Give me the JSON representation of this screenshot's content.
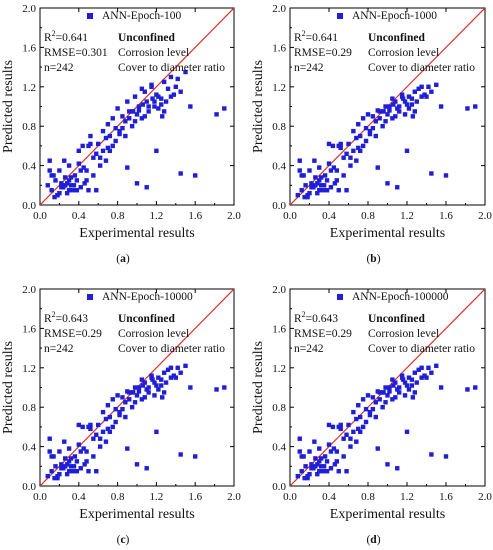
{
  "chart_data": [
    {
      "type": "scatter",
      "panel": "(a)",
      "legend": "ANN-Epoch-100",
      "stats": {
        "r2_label": "R",
        "r2_exp": "2",
        "r2_value": "=0.641",
        "rmse": "RMSE=0.301",
        "n": "n=242"
      },
      "notes": [
        "Unconfined",
        "Corrosion level",
        "Cover to diameter ratio"
      ],
      "xlabel": "Experimental results",
      "ylabel": "Predicted results",
      "xlim": [
        0,
        2.0
      ],
      "ylim": [
        0,
        2.0
      ],
      "xticks": [
        "0.0",
        "0.4",
        "0.8",
        "1.2",
        "1.6",
        "2.0"
      ],
      "yticks": [
        "0.0",
        "0.4",
        "0.8",
        "1.2",
        "1.6",
        "2.0"
      ],
      "reference_line": "y = x",
      "marker_color": "#1f1fd6",
      "line_color": "#e0302a",
      "x": [
        0.08,
        0.1,
        0.12,
        0.14,
        0.16,
        0.18,
        0.2,
        0.22,
        0.24,
        0.26,
        0.28,
        0.3,
        0.32,
        0.34,
        0.36,
        0.38,
        0.4,
        0.42,
        0.44,
        0.46,
        0.48,
        0.5,
        0.52,
        0.55,
        0.58,
        0.6,
        0.62,
        0.65,
        0.68,
        0.7,
        0.72,
        0.75,
        0.78,
        0.8,
        0.82,
        0.85,
        0.88,
        0.9,
        0.92,
        0.95,
        0.98,
        1.0,
        1.02,
        1.05,
        1.08,
        1.1,
        1.12,
        1.15,
        1.18,
        1.2,
        1.22,
        1.25,
        1.28,
        1.3,
        1.35,
        1.4,
        1.45,
        1.5,
        1.55,
        1.82,
        1.9,
        0.12,
        0.18,
        0.25,
        0.3,
        0.35,
        0.42,
        0.55,
        0.65,
        0.75,
        0.85,
        0.95,
        1.05,
        1.15,
        1.25,
        1.35,
        0.2,
        0.28,
        0.38,
        0.48,
        0.62,
        0.72,
        0.88,
        0.98,
        1.08,
        1.18,
        1.28,
        1.38,
        0.15,
        0.22,
        0.32,
        0.45,
        0.58,
        0.68,
        0.78,
        0.92,
        1.02,
        1.12,
        1.22,
        1.32,
        1.42,
        0.1,
        0.26,
        0.4,
        0.52,
        0.7,
        0.82,
        0.96,
        1.06,
        1.16,
        1.26,
        1.45,
        1.6,
        0.9,
        1.0,
        1.1,
        1.2,
        0.3,
        0.5
      ],
      "y": [
        0.2,
        0.45,
        0.15,
        0.3,
        0.25,
        0.1,
        0.35,
        0.22,
        0.18,
        0.28,
        0.12,
        0.4,
        0.2,
        0.15,
        0.3,
        0.25,
        0.55,
        0.18,
        0.6,
        0.22,
        0.35,
        0.15,
        0.7,
        0.3,
        0.15,
        0.62,
        0.48,
        0.75,
        0.45,
        0.82,
        0.7,
        0.88,
        0.65,
        0.98,
        0.72,
        0.9,
        0.85,
        1.05,
        0.95,
        0.8,
        1.1,
        0.92,
        1.0,
        0.88,
        1.15,
        1.05,
        0.95,
        1.2,
        1.0,
        1.12,
        0.98,
        1.08,
        1.25,
        1.05,
        1.3,
        1.2,
        1.15,
        1.35,
        1.0,
        0.92,
        0.98,
        0.3,
        0.1,
        0.45,
        0.15,
        0.2,
        0.35,
        0.48,
        0.55,
        0.6,
        0.78,
        0.95,
        1.18,
        1.22,
        1.02,
        1.1,
        0.12,
        0.22,
        0.15,
        0.25,
        0.4,
        0.55,
        0.7,
        0.85,
        0.9,
        1.05,
        0.95,
        1.12,
        0.08,
        0.18,
        0.28,
        0.38,
        0.52,
        0.68,
        0.78,
        0.88,
        0.96,
        1.0,
        1.1,
        1.18,
        1.28,
        0.35,
        0.2,
        0.42,
        0.62,
        0.58,
        0.75,
        0.95,
        1.02,
        1.08,
        0.9,
        0.32,
        0.3,
        0.38,
        0.22,
        0.18,
        0.55,
        0.25,
        0.6
      ]
    },
    {
      "type": "scatter",
      "panel": "(b)",
      "legend": "ANN-Epoch-1000",
      "stats": {
        "r2_label": "R",
        "r2_exp": "2",
        "r2_value": "=0.641",
        "rmse": "RMSE=0.29",
        "n": "n=242"
      },
      "notes": [
        "Unconfined",
        "Corrosion level",
        "Cover to diameter ratio"
      ],
      "xlabel": "Experimental results",
      "ylabel": "Predicted results",
      "xlim": [
        0,
        2.0
      ],
      "ylim": [
        0,
        2.0
      ],
      "xticks": [
        "0.0",
        "0.4",
        "0.8",
        "1.2",
        "1.6",
        "2.0"
      ],
      "yticks": [
        "0.0",
        "0.4",
        "0.8",
        "1.2",
        "1.6",
        "2.0"
      ],
      "reference_line": "y = x",
      "marker_color": "#1f1fd6",
      "line_color": "#e0302a",
      "x": [
        0.08,
        0.1,
        0.12,
        0.14,
        0.16,
        0.18,
        0.2,
        0.22,
        0.24,
        0.26,
        0.28,
        0.3,
        0.32,
        0.34,
        0.36,
        0.38,
        0.4,
        0.42,
        0.44,
        0.46,
        0.48,
        0.5,
        0.52,
        0.55,
        0.58,
        0.6,
        0.62,
        0.65,
        0.68,
        0.7,
        0.72,
        0.75,
        0.78,
        0.8,
        0.82,
        0.85,
        0.88,
        0.9,
        0.92,
        0.95,
        0.98,
        1.0,
        1.02,
        1.05,
        1.08,
        1.1,
        1.12,
        1.15,
        1.18,
        1.2,
        1.22,
        1.25,
        1.28,
        1.3,
        1.35,
        1.4,
        1.45,
        1.5,
        1.55,
        1.82,
        1.9,
        0.12,
        0.18,
        0.25,
        0.3,
        0.35,
        0.42,
        0.55,
        0.65,
        0.75,
        0.85,
        0.95,
        1.05,
        1.15,
        1.25,
        1.35,
        0.2,
        0.28,
        0.38,
        0.48,
        0.62,
        0.72,
        0.88,
        0.98,
        1.08,
        1.18,
        1.28,
        1.38,
        0.15,
        0.22,
        0.32,
        0.45,
        0.58,
        0.68,
        0.78,
        0.92,
        1.02,
        1.12,
        1.22,
        1.32,
        1.42,
        0.1,
        0.26,
        0.4,
        0.52,
        0.7,
        0.82,
        0.96,
        1.06,
        1.16,
        1.26,
        1.45,
        1.6,
        0.9,
        1.0,
        1.1,
        1.2,
        0.3,
        0.5
      ],
      "y": [
        0.1,
        0.45,
        0.15,
        0.3,
        0.2,
        0.08,
        0.35,
        0.22,
        0.18,
        0.28,
        0.12,
        0.38,
        0.2,
        0.15,
        0.3,
        0.25,
        0.62,
        0.18,
        0.6,
        0.22,
        0.35,
        0.15,
        0.58,
        0.3,
        0.15,
        0.62,
        0.48,
        0.75,
        0.45,
        0.82,
        0.7,
        0.88,
        0.65,
        0.92,
        0.72,
        0.9,
        0.85,
        0.96,
        0.95,
        0.8,
        1.0,
        0.92,
        1.0,
        0.88,
        1.05,
        0.98,
        0.95,
        1.1,
        0.92,
        1.02,
        0.98,
        1.08,
        1.15,
        1.05,
        1.2,
        1.1,
        1.15,
        1.22,
        1.0,
        0.98,
        1.0,
        0.3,
        0.1,
        0.45,
        0.15,
        0.2,
        0.35,
        0.48,
        0.55,
        0.6,
        0.78,
        0.95,
        1.08,
        1.12,
        1.02,
        1.1,
        0.12,
        0.22,
        0.15,
        0.25,
        0.4,
        0.55,
        0.7,
        0.85,
        0.9,
        1.05,
        0.95,
        1.12,
        0.08,
        0.18,
        0.28,
        0.38,
        0.52,
        0.68,
        0.78,
        0.88,
        0.96,
        1.0,
        1.1,
        1.18,
        1.2,
        0.35,
        0.2,
        0.42,
        0.62,
        0.58,
        0.75,
        0.95,
        1.02,
        1.08,
        0.9,
        0.32,
        0.3,
        0.38,
        0.22,
        0.18,
        0.55,
        0.25,
        0.6
      ]
    },
    {
      "type": "scatter",
      "panel": "(c)",
      "legend": "ANN-Epoch-10000",
      "stats": {
        "r2_label": "R",
        "r2_exp": "2",
        "r2_value": "=0.643",
        "rmse": "RMSE=0.29",
        "n": "n=242"
      },
      "notes": [
        "Unconfined",
        "Corrosion level",
        "Cover to diameter ratio"
      ],
      "xlabel": "Experimental results",
      "ylabel": "Predicted results",
      "xlim": [
        0,
        2.0
      ],
      "ylim": [
        0,
        2.0
      ],
      "xticks": [
        "0.0",
        "0.4",
        "0.8",
        "1.2",
        "1.6",
        "2.0"
      ],
      "yticks": [
        "0.0",
        "0.4",
        "0.8",
        "1.2",
        "1.6",
        "2.0"
      ],
      "reference_line": "y = x",
      "marker_color": "#1f1fd6",
      "line_color": "#e0302a",
      "x": [
        0.08,
        0.1,
        0.12,
        0.14,
        0.16,
        0.18,
        0.2,
        0.22,
        0.24,
        0.26,
        0.28,
        0.3,
        0.32,
        0.34,
        0.36,
        0.38,
        0.4,
        0.42,
        0.44,
        0.46,
        0.48,
        0.5,
        0.52,
        0.55,
        0.58,
        0.6,
        0.62,
        0.65,
        0.68,
        0.7,
        0.72,
        0.75,
        0.78,
        0.8,
        0.82,
        0.85,
        0.88,
        0.9,
        0.92,
        0.95,
        0.98,
        1.0,
        1.02,
        1.05,
        1.08,
        1.1,
        1.12,
        1.15,
        1.18,
        1.2,
        1.22,
        1.25,
        1.28,
        1.3,
        1.35,
        1.4,
        1.45,
        1.5,
        1.55,
        1.82,
        1.9,
        0.12,
        0.18,
        0.25,
        0.3,
        0.35,
        0.42,
        0.55,
        0.65,
        0.75,
        0.85,
        0.95,
        1.05,
        1.15,
        1.25,
        1.35,
        0.2,
        0.28,
        0.38,
        0.48,
        0.62,
        0.72,
        0.88,
        0.98,
        1.08,
        1.18,
        1.28,
        1.38,
        0.15,
        0.22,
        0.32,
        0.45,
        0.58,
        0.68,
        0.78,
        0.92,
        1.02,
        1.12,
        1.22,
        1.32,
        1.42,
        0.1,
        0.26,
        0.4,
        0.52,
        0.7,
        0.82,
        0.96,
        1.06,
        1.16,
        1.26,
        1.45,
        1.6,
        0.9,
        1.0,
        1.1,
        1.2,
        0.3,
        0.5
      ],
      "y": [
        0.1,
        0.48,
        0.15,
        0.3,
        0.2,
        0.08,
        0.35,
        0.22,
        0.18,
        0.28,
        0.12,
        0.38,
        0.2,
        0.15,
        0.3,
        0.25,
        0.62,
        0.18,
        0.6,
        0.22,
        0.35,
        0.15,
        0.58,
        0.3,
        0.15,
        0.62,
        0.48,
        0.75,
        0.45,
        0.82,
        0.7,
        0.88,
        0.65,
        0.92,
        0.72,
        0.9,
        0.85,
        0.96,
        0.95,
        0.8,
        1.0,
        0.92,
        1.0,
        0.88,
        1.05,
        0.98,
        0.95,
        1.1,
        0.92,
        1.02,
        0.98,
        1.08,
        1.15,
        1.05,
        1.2,
        1.1,
        1.15,
        1.22,
        1.0,
        0.98,
        1.0,
        0.3,
        0.1,
        0.45,
        0.15,
        0.2,
        0.35,
        0.48,
        0.55,
        0.6,
        0.78,
        0.95,
        1.08,
        1.12,
        1.02,
        1.1,
        0.12,
        0.22,
        0.15,
        0.25,
        0.4,
        0.55,
        0.7,
        0.85,
        0.9,
        1.05,
        0.95,
        1.12,
        0.08,
        0.18,
        0.28,
        0.38,
        0.52,
        0.68,
        0.78,
        0.88,
        0.96,
        1.0,
        1.1,
        1.18,
        1.2,
        0.35,
        0.2,
        0.42,
        0.62,
        0.58,
        0.75,
        0.95,
        1.02,
        1.08,
        0.9,
        0.32,
        0.3,
        0.38,
        0.22,
        0.18,
        0.55,
        0.25,
        0.6
      ]
    },
    {
      "type": "scatter",
      "panel": "(d)",
      "legend": "ANN-Epoch-100000",
      "stats": {
        "r2_label": "R",
        "r2_exp": "2",
        "r2_value": "=0.643",
        "rmse": "RMSE=0.29",
        "n": "n=242"
      },
      "notes": [
        "Unconfined",
        "Corrosion level",
        "Cover to diameter ratio"
      ],
      "xlabel": "Experimental results",
      "ylabel": "Predicted results",
      "xlim": [
        0,
        2.0
      ],
      "ylim": [
        0,
        2.0
      ],
      "xticks": [
        "0.0",
        "0.4",
        "0.8",
        "1.2",
        "1.6",
        "2.0"
      ],
      "yticks": [
        "0.0",
        "0.4",
        "0.8",
        "1.2",
        "1.6",
        "2.0"
      ],
      "reference_line": "y = x",
      "marker_color": "#1f1fd6",
      "line_color": "#e0302a",
      "x": [
        0.08,
        0.1,
        0.12,
        0.14,
        0.16,
        0.18,
        0.2,
        0.22,
        0.24,
        0.26,
        0.28,
        0.3,
        0.32,
        0.34,
        0.36,
        0.38,
        0.4,
        0.42,
        0.44,
        0.46,
        0.48,
        0.5,
        0.52,
        0.55,
        0.58,
        0.6,
        0.62,
        0.65,
        0.68,
        0.7,
        0.72,
        0.75,
        0.78,
        0.8,
        0.82,
        0.85,
        0.88,
        0.9,
        0.92,
        0.95,
        0.98,
        1.0,
        1.02,
        1.05,
        1.08,
        1.1,
        1.12,
        1.15,
        1.18,
        1.2,
        1.22,
        1.25,
        1.28,
        1.3,
        1.35,
        1.4,
        1.45,
        1.5,
        1.55,
        1.82,
        1.9,
        0.12,
        0.18,
        0.25,
        0.3,
        0.35,
        0.42,
        0.55,
        0.65,
        0.75,
        0.85,
        0.95,
        1.05,
        1.15,
        1.25,
        1.35,
        0.2,
        0.28,
        0.38,
        0.48,
        0.62,
        0.72,
        0.88,
        0.98,
        1.08,
        1.18,
        1.28,
        1.38,
        0.15,
        0.22,
        0.32,
        0.45,
        0.58,
        0.68,
        0.78,
        0.92,
        1.02,
        1.12,
        1.22,
        1.32,
        1.42,
        0.1,
        0.26,
        0.4,
        0.52,
        0.7,
        0.82,
        0.96,
        1.06,
        1.16,
        1.26,
        1.45,
        1.6,
        0.9,
        1.0,
        1.1,
        1.2,
        0.3,
        0.5
      ],
      "y": [
        0.1,
        0.48,
        0.15,
        0.3,
        0.2,
        0.08,
        0.35,
        0.22,
        0.18,
        0.28,
        0.12,
        0.38,
        0.2,
        0.15,
        0.3,
        0.25,
        0.62,
        0.18,
        0.6,
        0.22,
        0.35,
        0.15,
        0.58,
        0.3,
        0.15,
        0.62,
        0.48,
        0.75,
        0.45,
        0.82,
        0.7,
        0.88,
        0.65,
        0.92,
        0.72,
        0.9,
        0.85,
        0.96,
        0.95,
        0.8,
        1.0,
        0.92,
        1.0,
        0.88,
        1.05,
        0.98,
        0.95,
        1.1,
        0.92,
        1.02,
        0.98,
        1.08,
        1.15,
        1.05,
        1.2,
        1.1,
        1.15,
        1.22,
        1.0,
        0.98,
        1.0,
        0.3,
        0.1,
        0.45,
        0.15,
        0.2,
        0.35,
        0.48,
        0.55,
        0.6,
        0.78,
        0.95,
        1.08,
        1.12,
        1.02,
        1.1,
        0.12,
        0.22,
        0.15,
        0.25,
        0.4,
        0.55,
        0.7,
        0.85,
        0.9,
        1.05,
        0.95,
        1.12,
        0.08,
        0.18,
        0.28,
        0.38,
        0.52,
        0.68,
        0.78,
        0.88,
        0.96,
        1.0,
        1.1,
        1.18,
        1.2,
        0.35,
        0.2,
        0.42,
        0.62,
        0.58,
        0.75,
        0.95,
        1.02,
        1.08,
        0.9,
        0.32,
        0.3,
        0.38,
        0.22,
        0.18,
        0.55,
        0.25,
        0.6
      ]
    }
  ]
}
